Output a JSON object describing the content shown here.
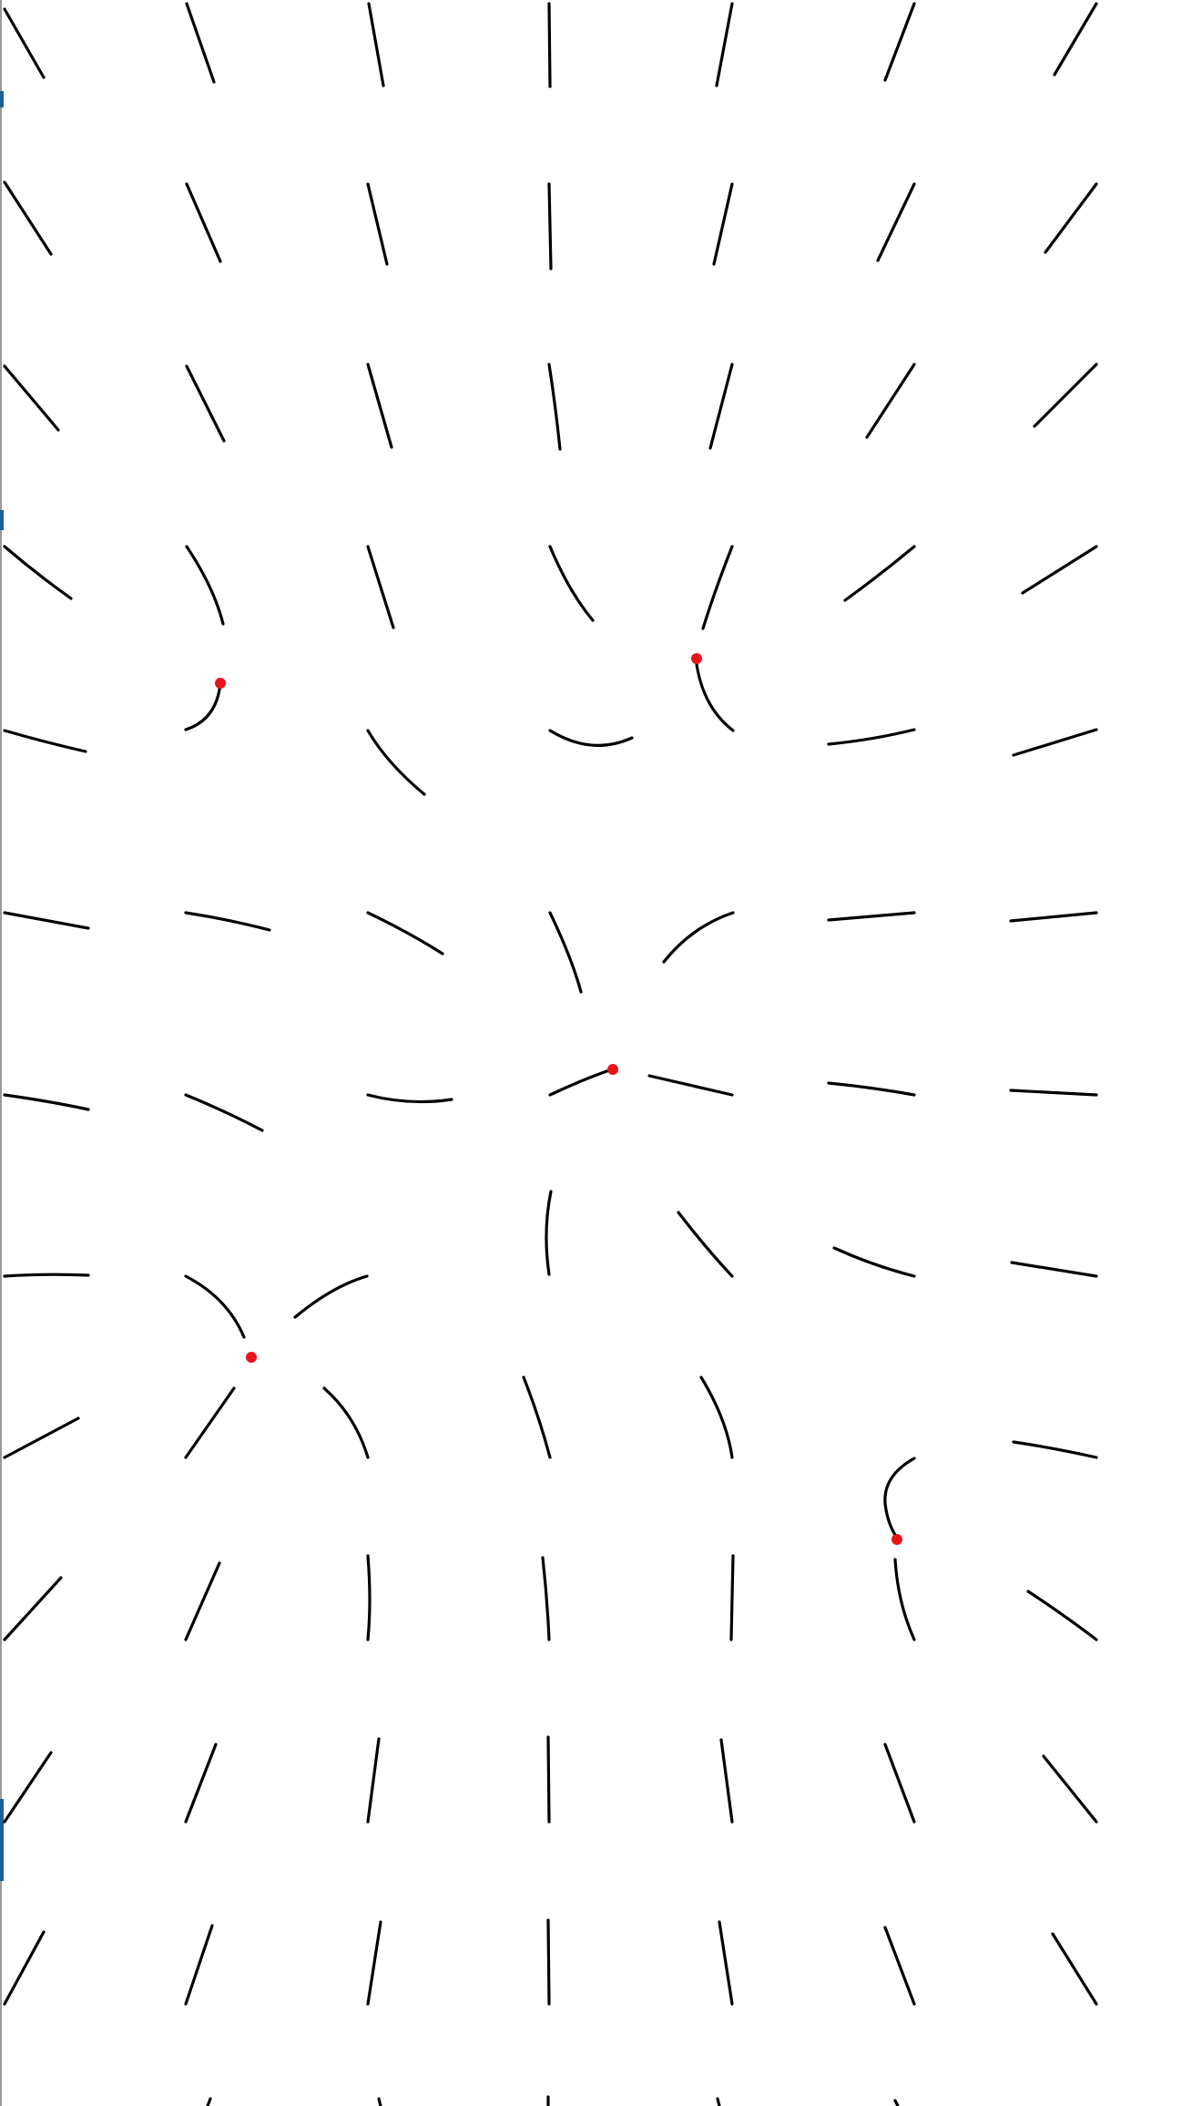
{
  "diagram": {
    "type": "streamline-vector-field",
    "background_color": "#ffffff",
    "stroke_color": "#000000",
    "singular_point_color": "#e8141c",
    "singular_point_count": 5
  }
}
